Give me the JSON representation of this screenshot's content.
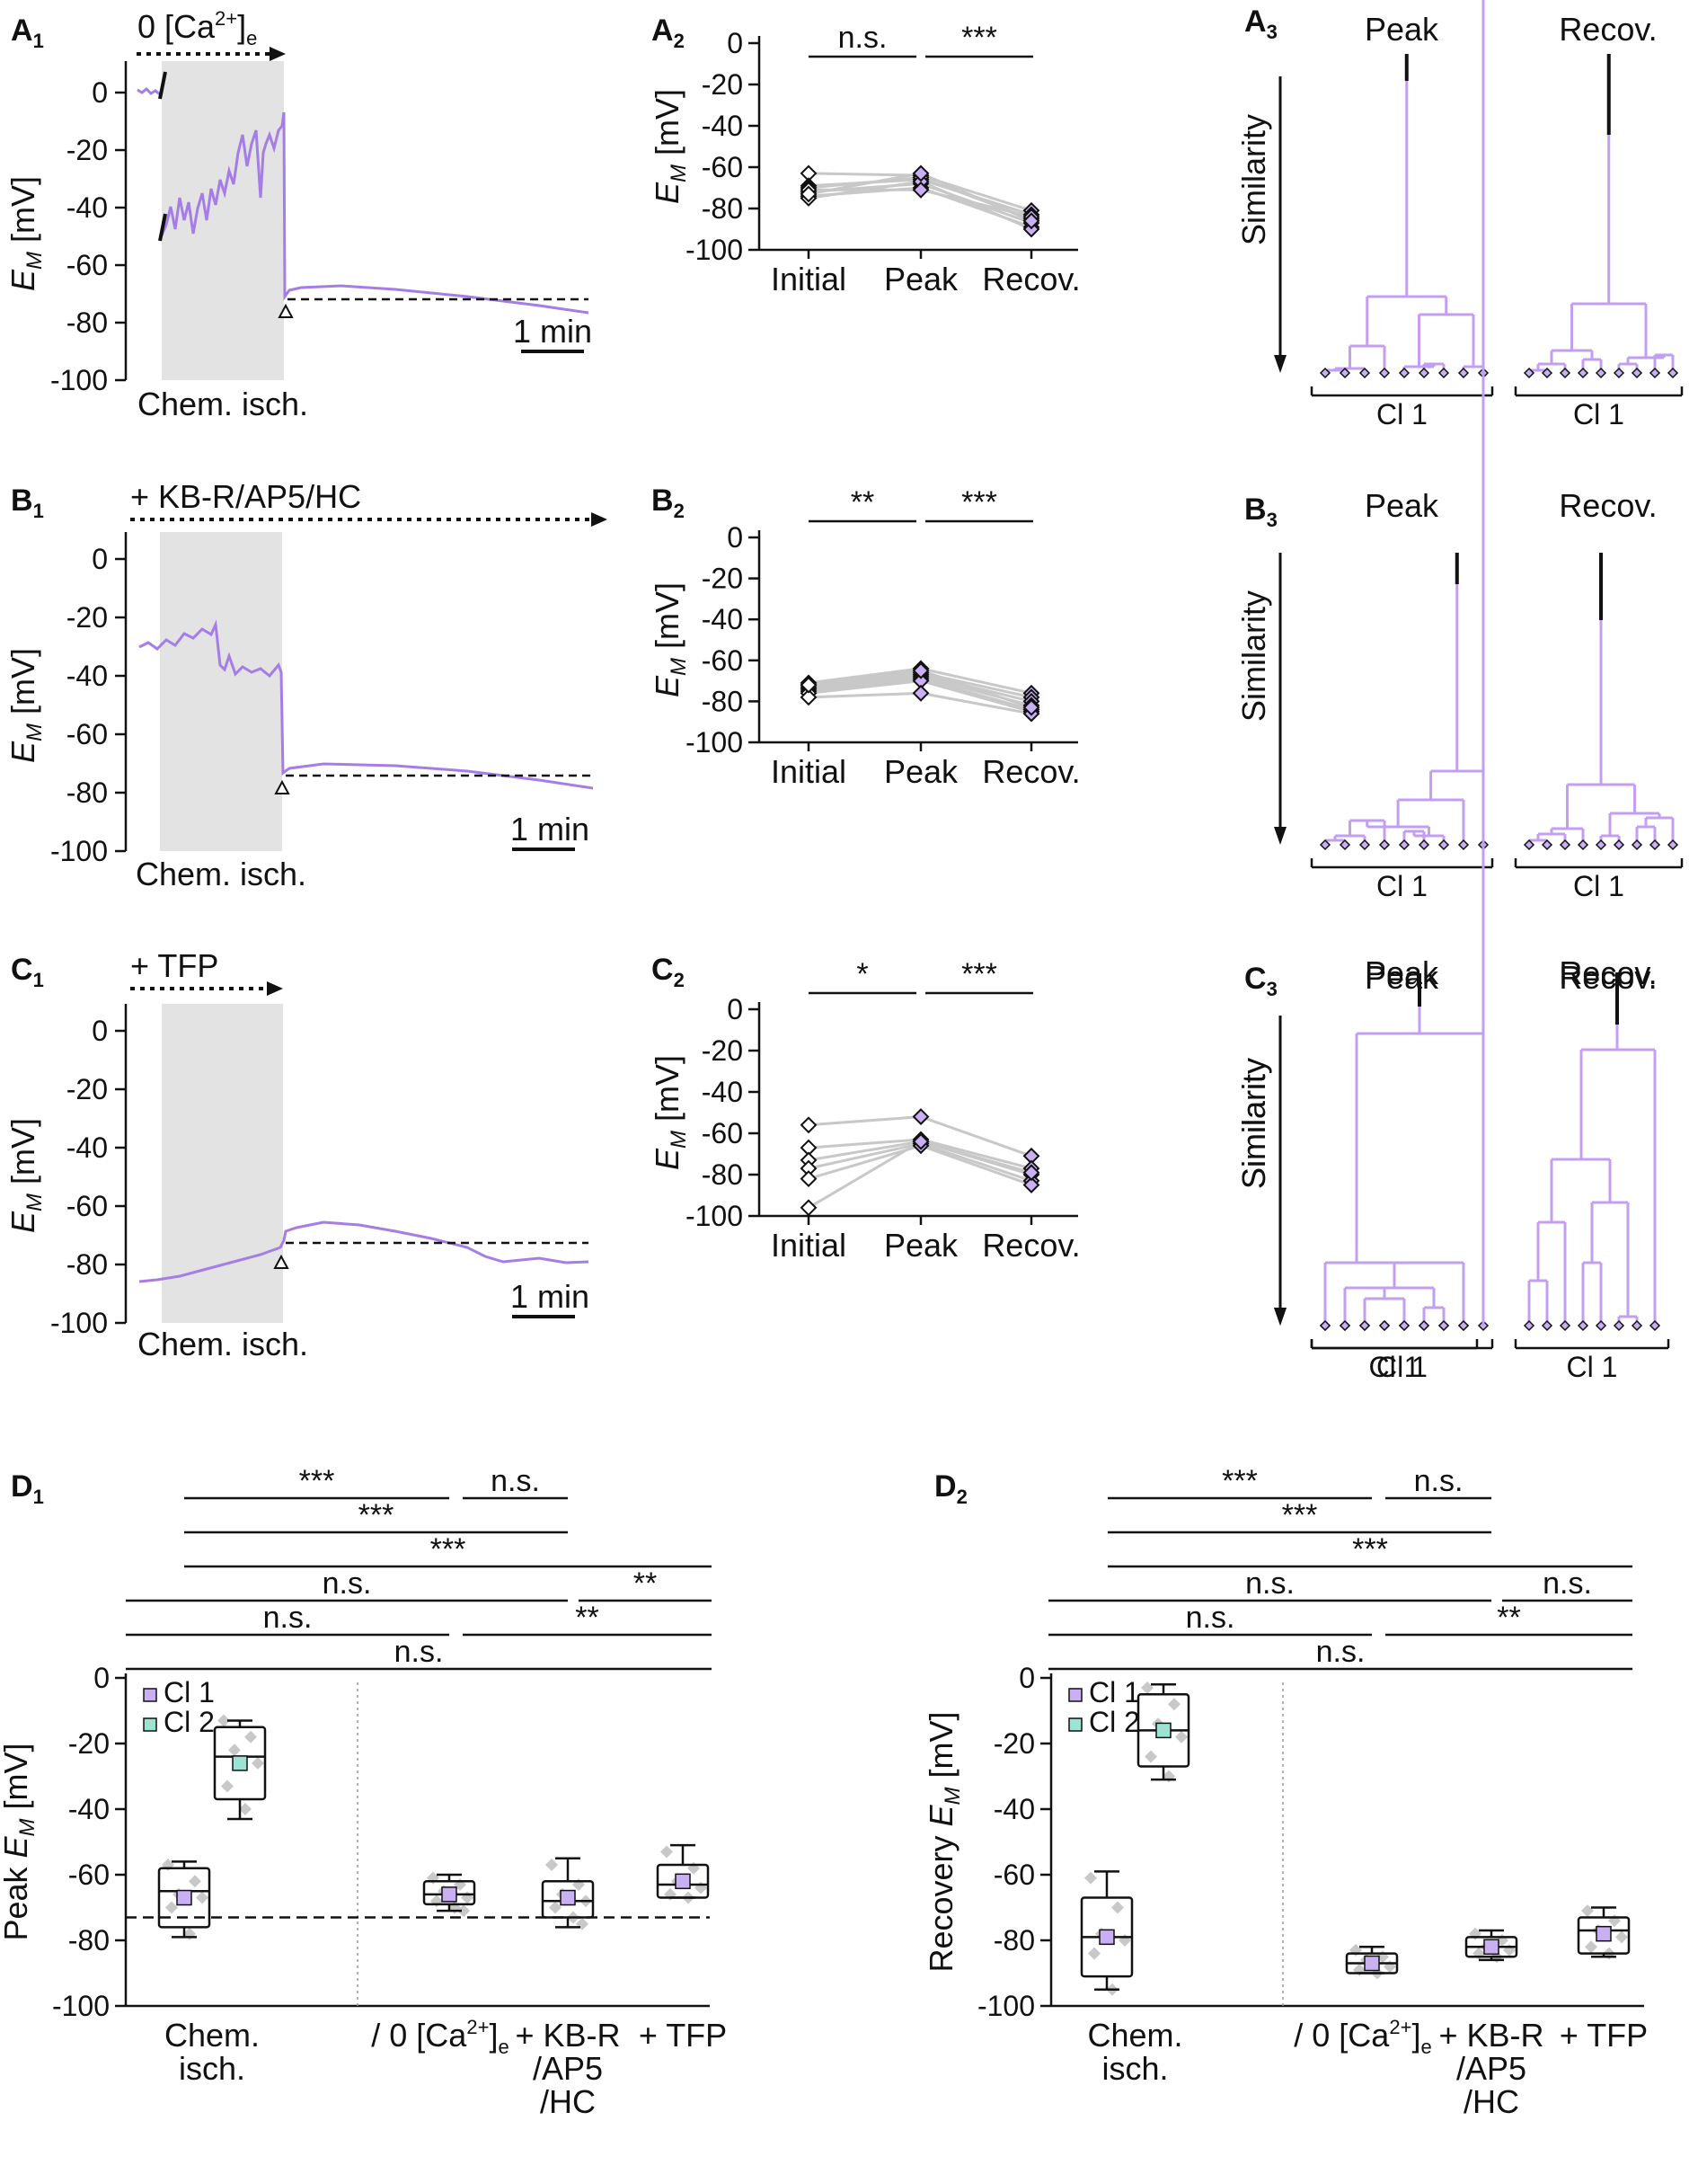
{
  "figure": {
    "panel_letters": {
      "A1": "A",
      "A2": "A",
      "A3": "A",
      "B1": "B",
      "B2": "B",
      "B3": "B",
      "C1": "C",
      "C2": "C",
      "C3": "C",
      "D1": "D",
      "D2": "D"
    },
    "panel_subscripts": {
      "A1": "1",
      "A2": "2",
      "A3": "3",
      "B1": "1",
      "B2": "2",
      "B3": "3",
      "C1": "1",
      "C2": "2",
      "C3": "3",
      "D1": "1",
      "D2": "2"
    },
    "colors": {
      "trace": "#a57de6",
      "cl1": "#c9b0f2",
      "cl2": "#9de3d3",
      "shade": "#e3e3e3",
      "points": "#c8c8c8"
    }
  },
  "traces": {
    "ylabel_em": "E",
    "ylabel_sub": "M",
    "ylabel_unit": " [mV]",
    "yticks": [
      "0",
      "-20",
      "-40",
      "-60",
      "-80",
      "-100"
    ],
    "chem_label": "Chem. isch.",
    "scale_label": "1 min",
    "A1": {
      "condition_prefix": "0 [Ca",
      "condition_sup": "2+",
      "condition_suffix": "]",
      "condition_sub": "e"
    },
    "B1": {
      "condition": "+ KB-R/AP5/HC"
    },
    "C1": {
      "condition": "+ TFP"
    }
  },
  "chart_data": [
    {
      "id": "A2",
      "type": "line",
      "categories": [
        "Initial",
        "Peak",
        "Recov."
      ],
      "ylabel": "EM [mV]",
      "ylim": [
        -100,
        0
      ],
      "significance": [
        {
          "pair": "Initial-Peak",
          "label": "n.s."
        },
        {
          "pair": "Peak-Recov.",
          "label": "***"
        }
      ],
      "series": [
        {
          "values": [
            -63,
            -64,
            -81
          ]
        },
        {
          "values": [
            -69,
            -66,
            -83
          ]
        },
        {
          "values": [
            -70,
            -65,
            -85
          ]
        },
        {
          "values": [
            -72,
            -68,
            -87
          ]
        },
        {
          "values": [
            -74,
            -70,
            -89
          ]
        },
        {
          "values": [
            -75,
            -67,
            -90
          ]
        },
        {
          "values": [
            -71,
            -71,
            -84
          ]
        },
        {
          "values": [
            -73,
            -63,
            -86
          ]
        }
      ]
    },
    {
      "id": "B2",
      "type": "line",
      "categories": [
        "Initial",
        "Peak",
        "Recov."
      ],
      "ylabel": "EM [mV]",
      "ylim": [
        -100,
        0
      ],
      "significance": [
        {
          "pair": "Initial-Peak",
          "label": "**"
        },
        {
          "pair": "Peak-Recov.",
          "label": "***"
        }
      ],
      "series": [
        {
          "values": [
            -71,
            -64,
            -76
          ]
        },
        {
          "values": [
            -72,
            -66,
            -78
          ]
        },
        {
          "values": [
            -73,
            -67,
            -80
          ]
        },
        {
          "values": [
            -74,
            -68,
            -82
          ]
        },
        {
          "values": [
            -75,
            -69,
            -84
          ]
        },
        {
          "values": [
            -76,
            -70,
            -85
          ]
        },
        {
          "values": [
            -78,
            -76,
            -86
          ]
        },
        {
          "values": [
            -72,
            -65,
            -83
          ]
        }
      ]
    },
    {
      "id": "C2",
      "type": "line",
      "categories": [
        "Initial",
        "Peak",
        "Recov."
      ],
      "ylabel": "EM [mV]",
      "ylim": [
        -100,
        0
      ],
      "significance": [
        {
          "pair": "Initial-Peak",
          "label": "*"
        },
        {
          "pair": "Peak-Recov.",
          "label": "***"
        }
      ],
      "series": [
        {
          "values": [
            -56,
            -52,
            -71
          ]
        },
        {
          "values": [
            -67,
            -63,
            -77
          ]
        },
        {
          "values": [
            -73,
            -64,
            -80
          ]
        },
        {
          "values": [
            -77,
            -65,
            -83
          ]
        },
        {
          "values": [
            -82,
            -66,
            -85
          ]
        },
        {
          "values": [
            -96,
            -64,
            -79
          ]
        }
      ]
    },
    {
      "id": "D1",
      "type": "box",
      "categories": [
        "Chem. isch. Cl 1",
        "Chem. isch. Cl 2",
        "/ 0 [Ca2+]e",
        "+ KB-R /AP5 /HC",
        "+ TFP"
      ],
      "ylabel": "Peak EM [mV]",
      "ylim": [
        -100,
        0
      ],
      "boxes": [
        {
          "min": -79,
          "q1": -76,
          "median": -65,
          "q3": -58,
          "max": -56,
          "mean": -67,
          "cluster": "Cl 1",
          "points": [
            -57,
            -62,
            -66,
            -67,
            -70,
            -78
          ]
        },
        {
          "min": -43,
          "q1": -37,
          "median": -24,
          "q3": -15,
          "max": -13,
          "mean": -26,
          "cluster": "Cl 2",
          "points": [
            -13,
            -18,
            -22,
            -26,
            -33,
            -40
          ]
        },
        {
          "min": -71,
          "q1": -69,
          "median": -66,
          "q3": -62,
          "max": -60,
          "mean": -66,
          "cluster": "Cl 1",
          "points": [
            -61,
            -63,
            -65,
            -67,
            -68,
            -70,
            -71
          ]
        },
        {
          "min": -76,
          "q1": -73,
          "median": -68,
          "q3": -62,
          "max": -55,
          "mean": -67,
          "cluster": "Cl 1",
          "points": [
            -57,
            -63,
            -66,
            -68,
            -70,
            -73,
            -75
          ]
        },
        {
          "min": -67,
          "q1": -67,
          "median": -63,
          "q3": -57,
          "max": -51,
          "mean": -62,
          "cluster": "Cl 1",
          "points": [
            -53,
            -58,
            -62,
            -64,
            -66,
            -67
          ]
        }
      ],
      "reference_line": -73,
      "legend": [
        "Cl 1",
        "Cl 2"
      ],
      "significance": [
        {
          "label": "***"
        },
        {
          "label": "n.s."
        },
        {
          "label": "***"
        },
        {
          "label": "***"
        },
        {
          "label": "n.s."
        },
        {
          "label": "**"
        },
        {
          "label": "n.s."
        },
        {
          "label": "**"
        },
        {
          "label": "n.s."
        }
      ]
    },
    {
      "id": "D2",
      "type": "box",
      "categories": [
        "Chem. isch. Cl 1",
        "Chem. isch. Cl 2",
        "/ 0 [Ca2+]e",
        "+ KB-R /AP5 /HC",
        "+ TFP"
      ],
      "ylabel": "Recovery EM [mV]",
      "ylim": [
        -100,
        0
      ],
      "boxes": [
        {
          "min": -95,
          "q1": -91,
          "median": -79,
          "q3": -67,
          "max": -59,
          "mean": -79,
          "cluster": "Cl 1",
          "points": [
            -61,
            -70,
            -78,
            -80,
            -84,
            -95
          ]
        },
        {
          "min": -31,
          "q1": -27,
          "median": -16,
          "q3": -5,
          "max": -2,
          "mean": -16,
          "cluster": "Cl 2",
          "points": [
            -3,
            -8,
            -14,
            -18,
            -24,
            -30
          ]
        },
        {
          "min": -90,
          "q1": -90,
          "median": -87,
          "q3": -84,
          "max": -82,
          "mean": -87,
          "cluster": "Cl 1",
          "points": [
            -83,
            -85,
            -86,
            -88,
            -89,
            -90
          ]
        },
        {
          "min": -86,
          "q1": -85,
          "median": -82,
          "q3": -79,
          "max": -77,
          "mean": -82,
          "cluster": "Cl 1",
          "points": [
            -78,
            -80,
            -82,
            -83,
            -84,
            -85
          ]
        },
        {
          "min": -85,
          "q1": -84,
          "median": -77,
          "q3": -73,
          "max": -70,
          "mean": -78,
          "cluster": "Cl 1",
          "points": [
            -71,
            -74,
            -77,
            -79,
            -82,
            -84
          ]
        }
      ],
      "legend": [
        "Cl 1",
        "Cl 2"
      ],
      "significance": [
        {
          "label": "***"
        },
        {
          "label": "n.s."
        },
        {
          "label": "***"
        },
        {
          "label": "***"
        },
        {
          "label": "n.s."
        },
        {
          "label": "n.s."
        },
        {
          "label": "n.s."
        },
        {
          "label": "**"
        },
        {
          "label": "n.s."
        }
      ]
    }
  ],
  "dendrograms": {
    "ylabel": "Similarity",
    "peak_label": "Peak",
    "recov_label": "Recov.",
    "cluster_label": "Cl 1"
  },
  "d_labels": {
    "chem_line1": "Chem.",
    "chem_line2": "isch.",
    "ca_prefix": "/ 0 [Ca",
    "ca_sup": "2+",
    "ca_suffix": "]",
    "ca_sub": "e",
    "kbr_line1": "+ KB-R",
    "kbr_line2": "/AP5",
    "kbr_line3": "/HC",
    "tfp": "+ TFP",
    "d1_ylabel_prefix": "Peak ",
    "d2_ylabel_prefix": "Recovery ",
    "em": "E",
    "em_sub": "M",
    "unit": " [mV]"
  }
}
